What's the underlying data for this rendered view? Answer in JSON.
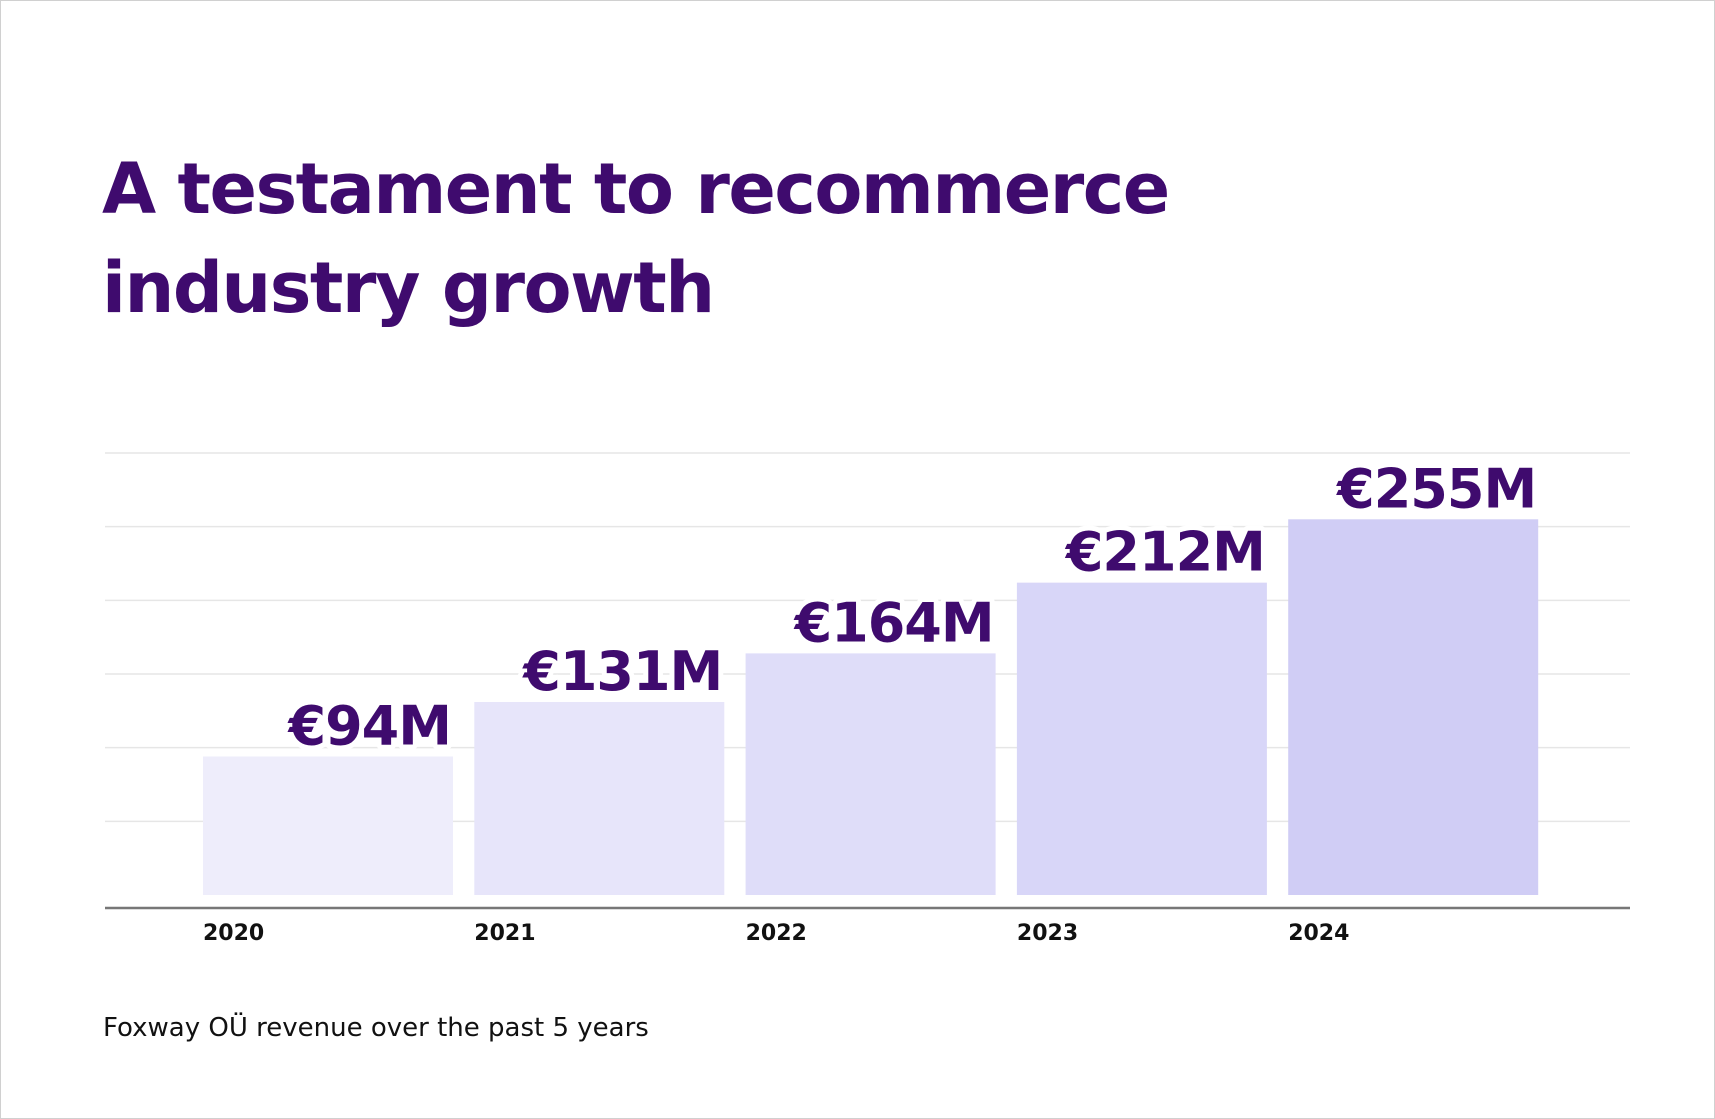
{
  "chart_data": {
    "type": "bar",
    "title": "A testament to recommerce industry growth",
    "caption": "Foxway OÜ revenue over the past 5 years",
    "categories": [
      "2020",
      "2021",
      "2022",
      "2023",
      "2024"
    ],
    "values": [
      94,
      131,
      164,
      212,
      255
    ],
    "value_labels": [
      "€94M",
      "€131M",
      "€164M",
      "€212M",
      "€255M"
    ],
    "colors": [
      "#eeedfb",
      "#e7e5fa",
      "#dfddf9",
      "#d8d6f8",
      "#d0cdf5"
    ],
    "ylim": [
      0,
      300
    ],
    "yticks": [
      50,
      100,
      150,
      200,
      250,
      300
    ],
    "grid": true
  }
}
